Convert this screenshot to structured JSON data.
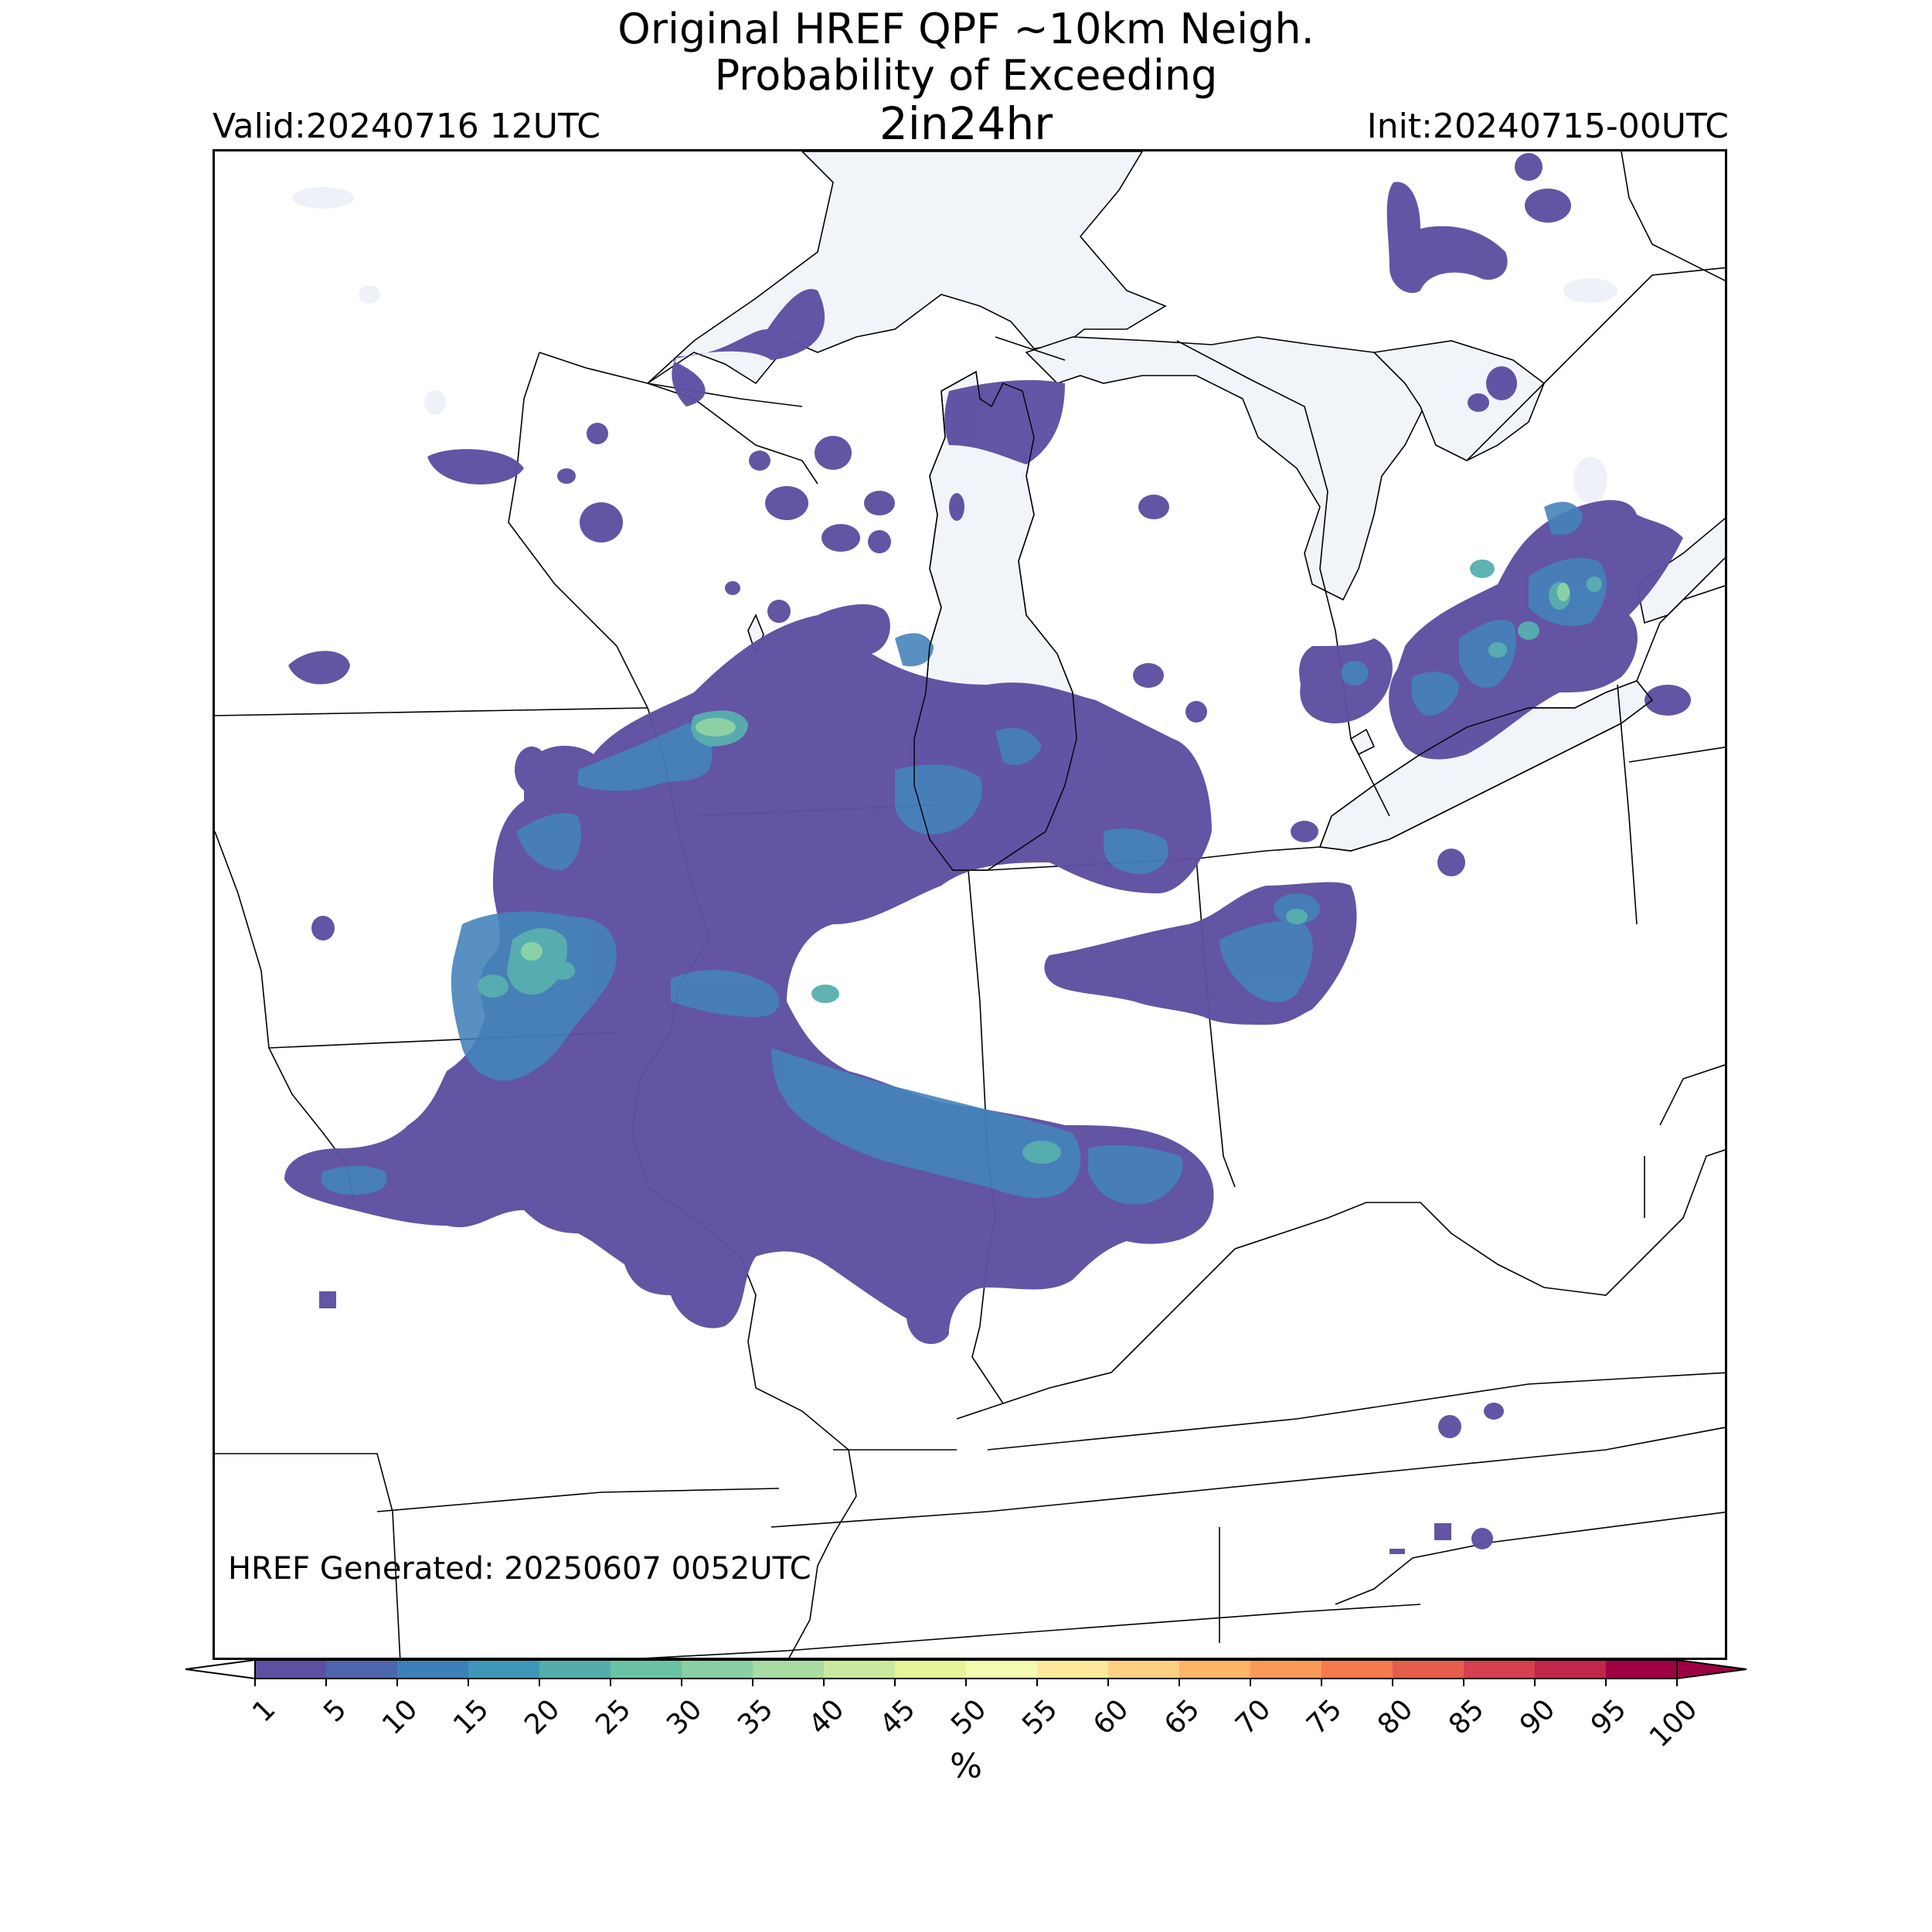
{
  "title": {
    "line1": "Original HREF QPF ~10km Neigh.",
    "line2": "Probability of Exceeding",
    "line3": "2in24hr"
  },
  "valid": "Valid:20240716 12UTC",
  "init": "Init:20240715-00UTC",
  "generated": "HREF Generated: 20250607 0052UTC",
  "colorbar": {
    "label": "%",
    "ticks": [
      "1",
      "5",
      "10",
      "15",
      "20",
      "25",
      "30",
      "35",
      "40",
      "45",
      "50",
      "55",
      "60",
      "65",
      "70",
      "75",
      "80",
      "85",
      "90",
      "95",
      "100"
    ],
    "colors": [
      "#5e4fa2",
      "#4d65ad",
      "#3b80b9",
      "#3f97b7",
      "#53adad",
      "#6ac3a5",
      "#89d0a4",
      "#aadca4",
      "#cbe99e",
      "#e6f598",
      "#f6fbb2",
      "#fee89a",
      "#fed081",
      "#fdb567",
      "#fa9a57",
      "#f57a4c",
      "#e55e4b",
      "#d5414e",
      "#c0274a",
      "#9e0142"
    ],
    "extend": "both"
  },
  "map": {
    "water_color": "#f1f5fa",
    "border_color": "#000000",
    "regions": [
      "Upper Midwest",
      "Great Lakes",
      "Ohio Valley"
    ]
  }
}
